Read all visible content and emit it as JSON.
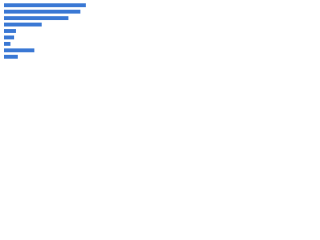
{
  "chart_data": {
    "type": "bar",
    "orientation": "horizontal",
    "categories": [
      null,
      null,
      null,
      null,
      null,
      null,
      null,
      null,
      null
    ],
    "values": [
      89,
      83,
      70,
      41,
      13,
      11,
      7,
      33,
      15
    ],
    "color": "#3a78d4",
    "xlim": [
      0,
      100
    ]
  }
}
